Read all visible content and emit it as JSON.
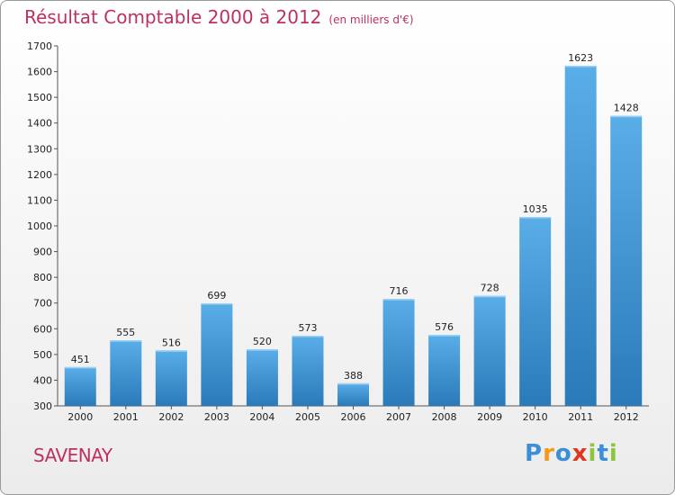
{
  "chart_data": {
    "type": "bar",
    "title": "Résultat Comptable 2000 à 2012",
    "subtitle": "(en milliers d'€)",
    "categories": [
      "2000",
      "2001",
      "2002",
      "2003",
      "2004",
      "2005",
      "2006",
      "2007",
      "2008",
      "2009",
      "2010",
      "2011",
      "2012"
    ],
    "values": [
      451,
      555,
      516,
      699,
      520,
      573,
      388,
      716,
      576,
      728,
      1035,
      1623,
      1428
    ],
    "ylim": [
      300,
      1700
    ],
    "yticks": [
      300,
      400,
      500,
      600,
      700,
      800,
      900,
      1000,
      1100,
      1200,
      1300,
      1400,
      1500,
      1600,
      1700
    ],
    "grid": false,
    "xlabel": "",
    "ylabel": ""
  },
  "footer": {
    "town": "SAVENAY",
    "logo_letters": [
      "P",
      "r",
      "o",
      "x",
      "i",
      "t",
      "i"
    ]
  },
  "colors": {
    "bar_top": "#5aaee8",
    "bar_bottom": "#2a7ab9",
    "title": "#c0305f",
    "logo": [
      "#3b8fd6",
      "#f39a1e",
      "#3b8fd6",
      "#e0361f",
      "#8cc63f",
      "#3b8fd6",
      "#8cc63f"
    ]
  }
}
